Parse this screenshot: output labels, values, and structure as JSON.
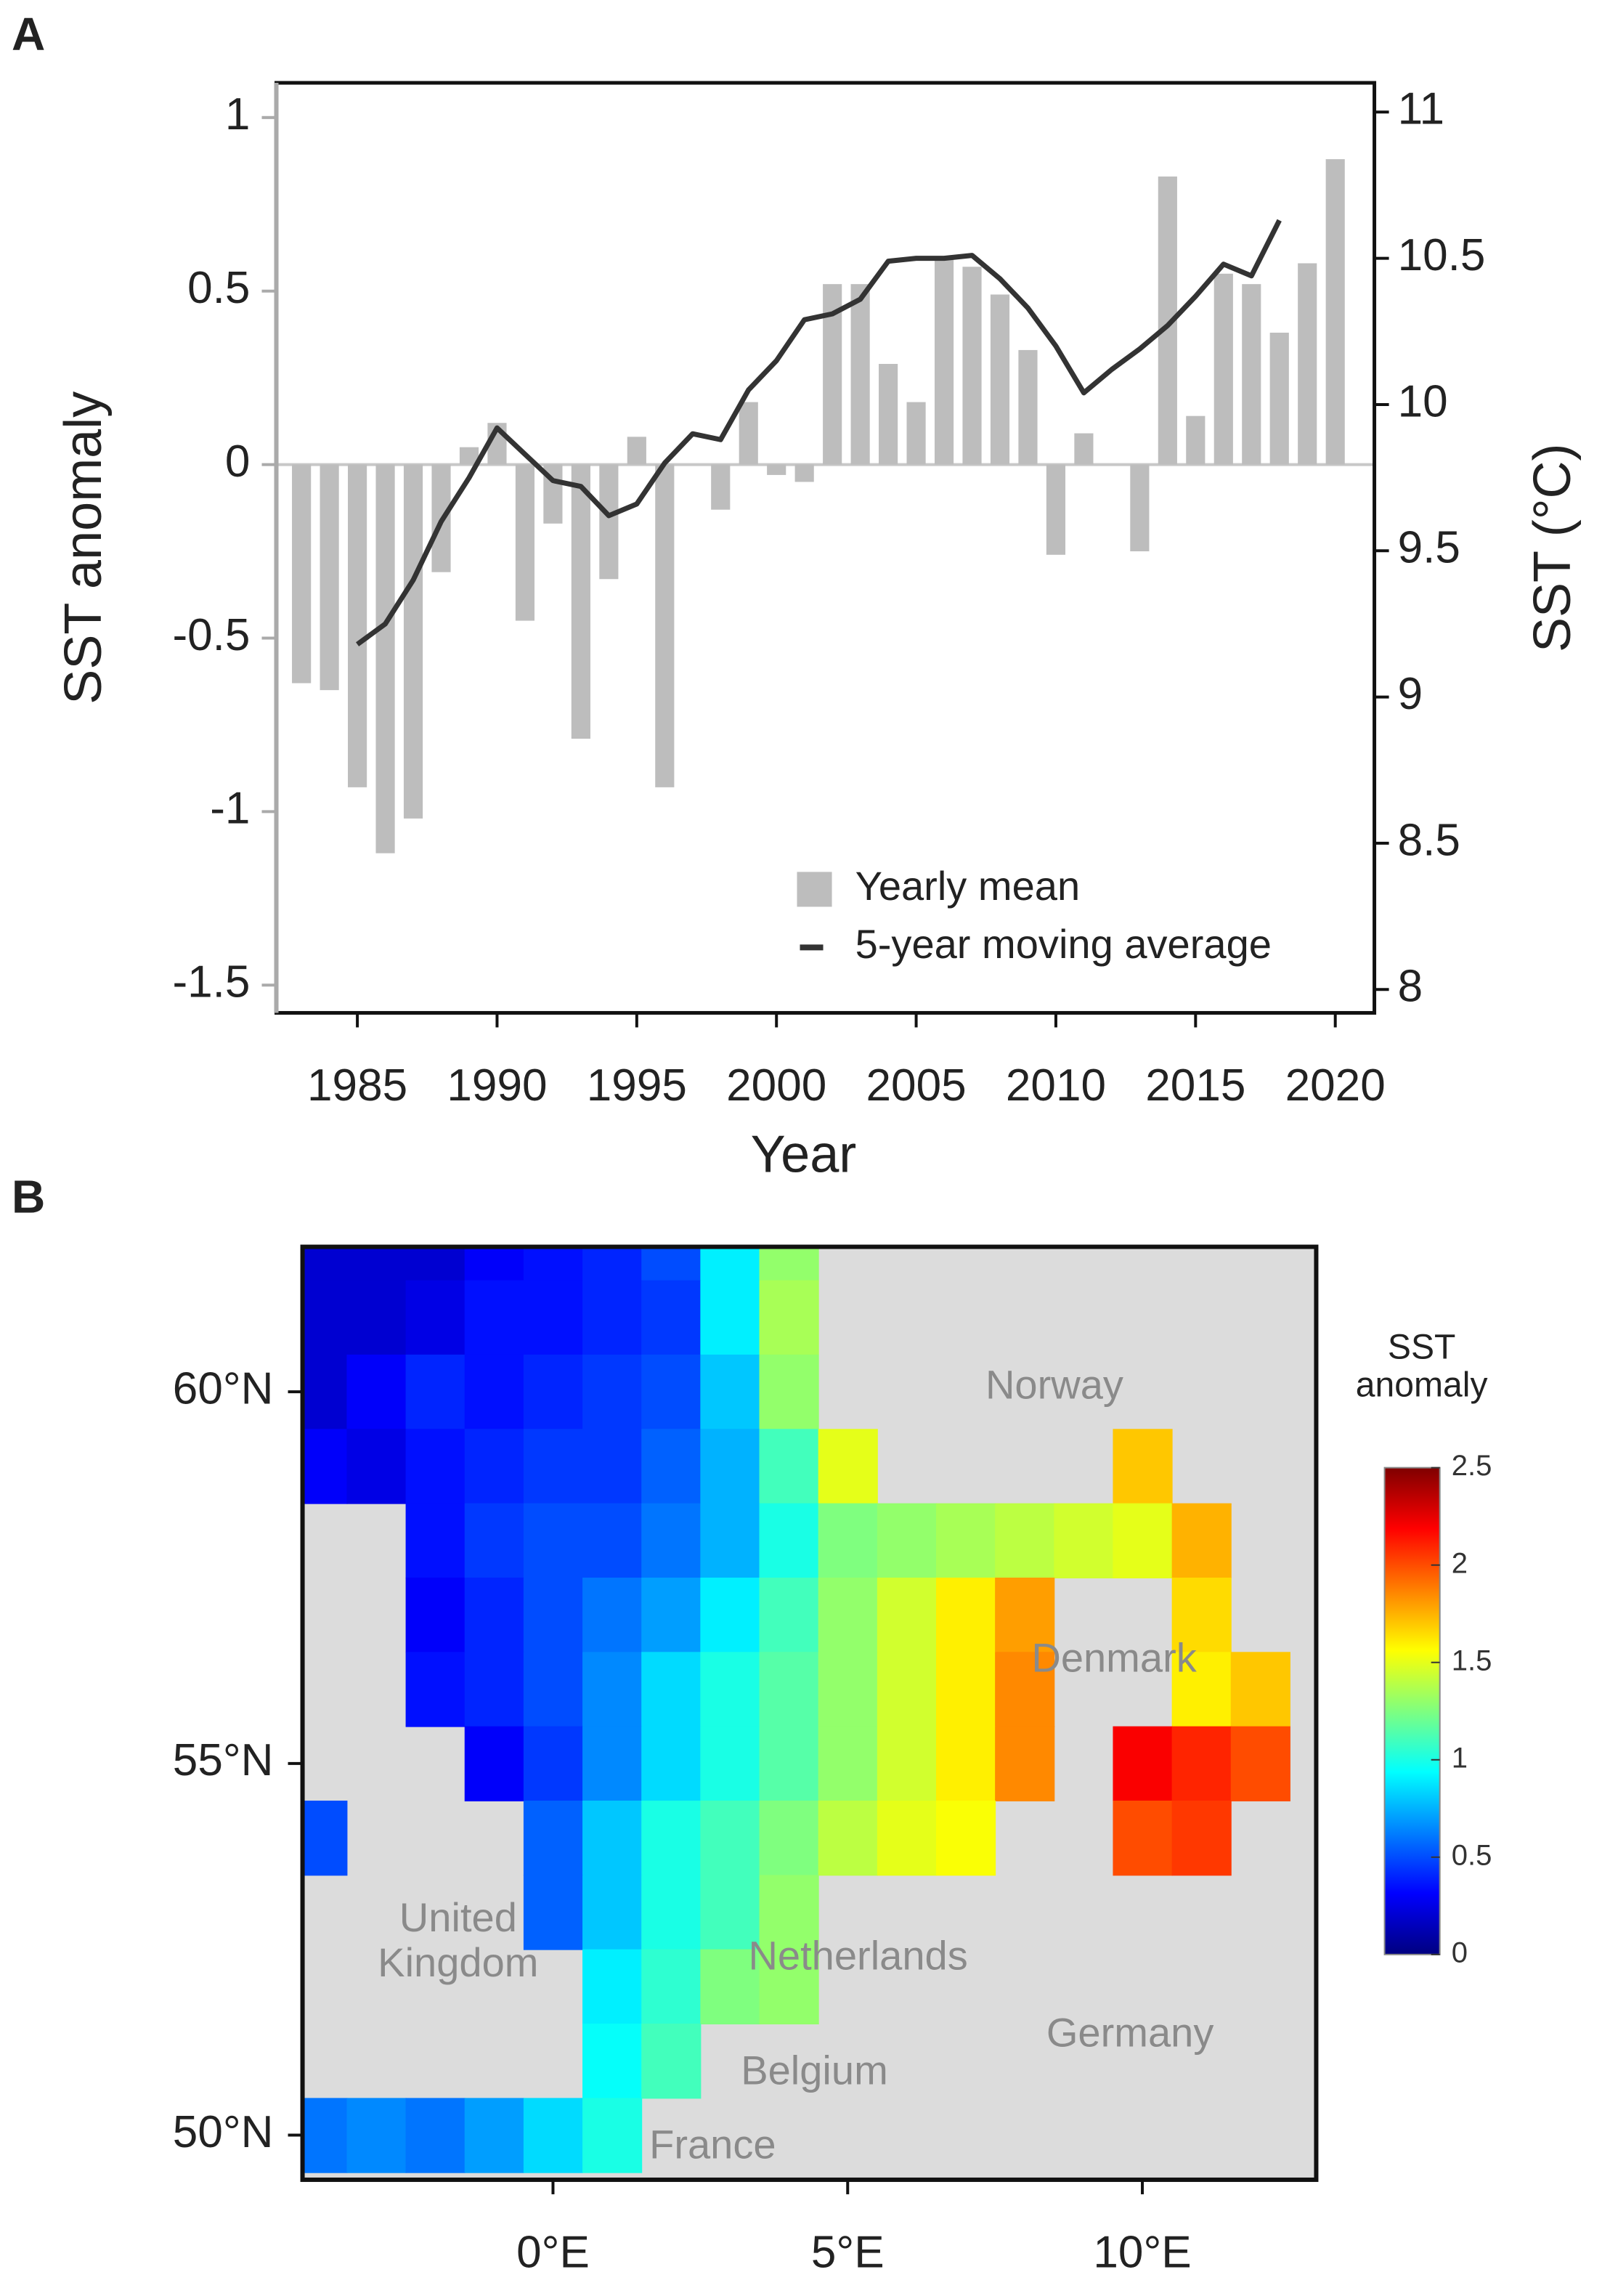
{
  "chart_data": [
    {
      "type": "combo",
      "panel_label": "A",
      "xlabel": "Year",
      "ylabel": "SST anomaly",
      "y2label": "SST (°C)",
      "x": [
        1983,
        1984,
        1985,
        1986,
        1987,
        1988,
        1989,
        1990,
        1991,
        1992,
        1993,
        1994,
        1995,
        1996,
        1997,
        1998,
        1999,
        2000,
        2001,
        2002,
        2003,
        2004,
        2005,
        2006,
        2007,
        2008,
        2009,
        2010,
        2011,
        2012,
        2013,
        2014,
        2015,
        2016,
        2017,
        2018,
        2019,
        2020
      ],
      "series": [
        {
          "name": "Yearly mean",
          "type": "bar",
          "color": "#bdbdbd",
          "axis": "y",
          "values": [
            -0.63,
            -0.65,
            -0.93,
            -1.12,
            -1.02,
            -0.31,
            0.05,
            0.12,
            -0.45,
            -0.17,
            -0.79,
            -0.33,
            0.08,
            -0.93,
            0,
            -0.13,
            0.18,
            -0.03,
            -0.05,
            0.52,
            0.52,
            0.29,
            0.18,
            0.6,
            0.57,
            0.49,
            0.33,
            -0.26,
            0.09,
            0,
            -0.25,
            0.83,
            0.14,
            0.55,
            0.52,
            0.38,
            0.58,
            0.88
          ]
        },
        {
          "name": "5-year moving average",
          "type": "line",
          "color": "#333333",
          "axis": "y2",
          "values": [
            null,
            null,
            9.18,
            9.25,
            9.4,
            9.6,
            9.75,
            9.92,
            9.83,
            9.74,
            9.72,
            9.62,
            9.66,
            9.8,
            9.9,
            9.88,
            10.05,
            10.15,
            10.29,
            10.31,
            10.36,
            10.49,
            10.5,
            10.5,
            10.51,
            10.43,
            10.33,
            10.2,
            10.04,
            10.12,
            10.19,
            10.27,
            10.37,
            10.48,
            10.44,
            10.63,
            null,
            null
          ]
        }
      ],
      "xlim": [
        1982.1,
        2021.4
      ],
      "xticks": [
        1985,
        1990,
        1995,
        2000,
        2005,
        2010,
        2015,
        2020
      ],
      "ylim": [
        -1.58,
        1.1
      ],
      "yticks": [
        1,
        0.5,
        0,
        -0.5,
        -1,
        -1.5
      ],
      "y2lim": [
        7.92,
        11.1
      ],
      "y2ticks": [
        11,
        10.5,
        10,
        9.5,
        9,
        8.5,
        8
      ],
      "legend": "lower right"
    },
    {
      "type": "heatmap",
      "panel_label": "B",
      "land_color": "#dcdcdc",
      "x": [
        -4,
        -3,
        -2,
        -1,
        0,
        1,
        2,
        3,
        4,
        5,
        6,
        7,
        8,
        9,
        10,
        11,
        12
      ],
      "y": [
        62,
        61,
        60,
        59,
        58,
        57,
        56,
        55,
        54,
        53,
        52,
        51,
        50
      ],
      "values": [
        [
          0.2,
          0.2,
          0.2,
          0.3,
          0.35,
          0.4,
          0.5,
          0.9,
          1.3,
          null,
          null,
          null,
          null,
          null,
          null,
          null,
          null
        ],
        [
          0.2,
          0.2,
          0.25,
          0.35,
          0.35,
          0.4,
          0.45,
          0.9,
          1.35,
          null,
          null,
          null,
          null,
          null,
          null,
          null,
          null
        ],
        [
          0.2,
          0.3,
          0.4,
          0.35,
          0.4,
          0.45,
          0.5,
          0.8,
          1.3,
          null,
          null,
          null,
          null,
          null,
          null,
          null,
          null
        ],
        [
          0.3,
          0.25,
          0.35,
          0.4,
          0.45,
          0.45,
          0.55,
          0.75,
          1.1,
          1.5,
          null,
          null,
          null,
          null,
          1.7,
          null,
          null
        ],
        [
          null,
          null,
          0.35,
          0.45,
          0.5,
          0.5,
          0.6,
          0.75,
          1.0,
          1.25,
          1.3,
          1.35,
          1.4,
          1.45,
          1.5,
          1.75,
          null
        ],
        [
          null,
          null,
          0.3,
          0.4,
          0.5,
          0.6,
          0.7,
          0.9,
          1.1,
          1.3,
          1.45,
          1.6,
          1.8,
          null,
          null,
          1.65,
          null
        ],
        [
          null,
          null,
          0.35,
          0.4,
          0.5,
          0.65,
          0.85,
          1.0,
          1.15,
          1.3,
          1.45,
          1.6,
          1.85,
          null,
          null,
          1.6,
          1.7
        ],
        [
          null,
          null,
          null,
          0.3,
          0.45,
          0.65,
          0.85,
          1.0,
          1.15,
          1.3,
          1.45,
          1.6,
          1.85,
          null,
          2.2,
          2.1,
          2.0
        ],
        [
          0.5,
          null,
          null,
          null,
          0.55,
          0.8,
          1.0,
          1.1,
          1.25,
          1.4,
          1.5,
          1.55,
          null,
          null,
          2.0,
          2.05,
          null
        ],
        [
          null,
          null,
          null,
          null,
          0.55,
          0.8,
          1.0,
          1.1,
          1.3,
          null,
          null,
          null,
          null,
          null,
          null,
          null,
          null
        ],
        [
          null,
          null,
          null,
          null,
          null,
          0.9,
          1.05,
          1.25,
          1.3,
          null,
          null,
          null,
          null,
          null,
          null,
          null,
          null
        ],
        [
          null,
          null,
          null,
          null,
          null,
          0.95,
          1.1,
          null,
          null,
          null,
          null,
          null,
          null,
          null,
          null,
          null,
          null
        ],
        [
          0.6,
          0.65,
          0.6,
          0.7,
          0.85,
          1.0,
          null,
          null,
          null,
          null,
          null,
          null,
          null,
          null,
          null,
          null,
          null
        ]
      ],
      "xlim": [
        -4.25,
        12.95
      ],
      "xticks": [
        {
          "value": 0,
          "label": "0°E"
        },
        {
          "value": 5,
          "label": "5°E"
        },
        {
          "value": 10,
          "label": "10°E"
        }
      ],
      "ylim": [
        49.4,
        61.95
      ],
      "yticks": [
        {
          "value": 60,
          "label": "60°N"
        },
        {
          "value": 55,
          "label": "55°N"
        },
        {
          "value": 50,
          "label": "50°N"
        }
      ],
      "colorbar_title": "SST anomaly",
      "clim": [
        0,
        2.5
      ],
      "cticks": [
        2.5,
        2,
        1.5,
        1,
        0.5,
        0
      ],
      "colormap": [
        "#00007f",
        "#0000ff",
        "#007fff",
        "#00ffff",
        "#7fff7f",
        "#ffff00",
        "#ff7f00",
        "#ff0000",
        "#7f0000"
      ],
      "annotations": [
        "Norway",
        "Denmark",
        "United Kingdom",
        "Netherlands",
        "Germany",
        "Belgium",
        "France"
      ]
    }
  ]
}
